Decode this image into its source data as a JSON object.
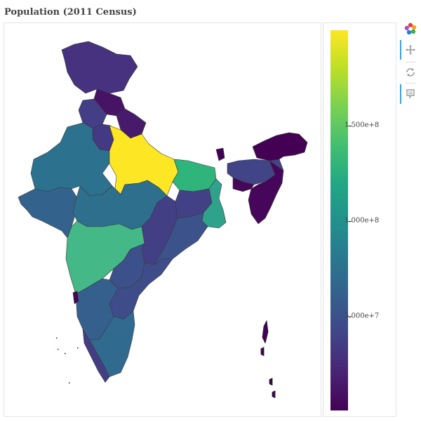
{
  "title": "Population (2011 Census)",
  "colorbar": {
    "palette": [
      "#440154",
      "#482475",
      "#414487",
      "#355f8d",
      "#2a788e",
      "#21918c",
      "#22a884",
      "#44bf70",
      "#7ad151",
      "#bddf26",
      "#fde725"
    ],
    "ticks": [
      {
        "label": "1.500e+8",
        "value": 150000000
      },
      {
        "label": "1.000e+8",
        "value": 100000000
      },
      {
        "label": "5.000e+7",
        "value": 50000000
      }
    ]
  },
  "toolbar": {
    "items": [
      "bokeh-logo-icon",
      "pan-tool-icon",
      "reset-tool-icon",
      "hover-tool-icon"
    ]
  },
  "regions": [
    {
      "name": "jammu-kashmir",
      "color": "#46327e"
    },
    {
      "name": "himachal",
      "color": "#471365"
    },
    {
      "name": "punjab",
      "color": "#433e85"
    },
    {
      "name": "uttarakhand",
      "color": "#481a6c"
    },
    {
      "name": "haryana",
      "color": "#443983"
    },
    {
      "name": "rajasthan",
      "color": "#2c728e"
    },
    {
      "name": "uttar-pradesh",
      "color": "#fde725"
    },
    {
      "name": "bihar",
      "color": "#2fb47c"
    },
    {
      "name": "gujarat",
      "color": "#33638d"
    },
    {
      "name": "madhya-pradesh",
      "color": "#2e6f8e"
    },
    {
      "name": "maharashtra",
      "color": "#44b987"
    },
    {
      "name": "chhattisgarh",
      "color": "#423f85"
    },
    {
      "name": "jharkhand",
      "color": "#424186"
    },
    {
      "name": "west-bengal",
      "color": "#2fa28b"
    },
    {
      "name": "odisha",
      "color": "#3b528b"
    },
    {
      "name": "telangana",
      "color": "#3c508b"
    },
    {
      "name": "andhra-pradesh",
      "color": "#3e4c8a"
    },
    {
      "name": "karnataka",
      "color": "#355f8d"
    },
    {
      "name": "goa",
      "color": "#450457"
    },
    {
      "name": "kerala",
      "color": "#433d84"
    },
    {
      "name": "tamil-nadu",
      "color": "#306a8e"
    },
    {
      "name": "sikkim",
      "color": "#440154"
    },
    {
      "name": "assam",
      "color": "#414487"
    },
    {
      "name": "arunachal",
      "color": "#440154"
    },
    {
      "name": "northeast",
      "color": "#46075a"
    }
  ]
}
